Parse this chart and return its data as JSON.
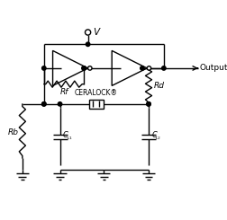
{
  "background": "#ffffff",
  "line_color": "#000000",
  "line_width": 1.0,
  "figsize": [
    2.53,
    2.45
  ],
  "dpi": 100,
  "V_label": "V",
  "Rf_label": "Rf",
  "Rd_label": "Rd",
  "Rb_label": "Rb",
  "output_label": "Output",
  "ceralock_label": "CERALOCK®"
}
